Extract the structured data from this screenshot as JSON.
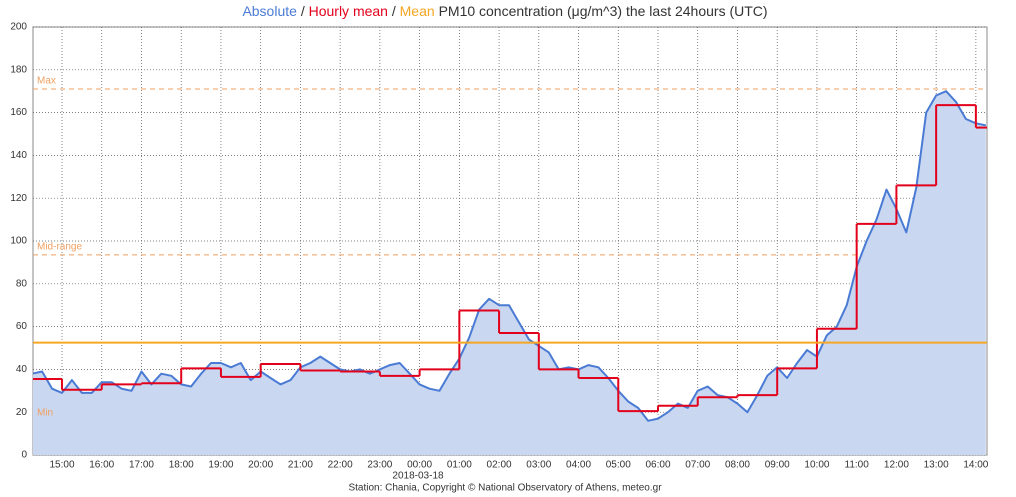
{
  "chart_data": {
    "type": "line",
    "title": "PM10 concentration (μg/m^3) the last 24hours (UTC)",
    "title_separator": "/",
    "x_date_label": "2018-03-18",
    "source": "Station: Chania, Copyright © National Observatory of Athens, meteo.gr",
    "xlim": [
      -9.73,
      14.28
    ],
    "xticks": [
      {
        "value": -9,
        "label": "15:00"
      },
      {
        "value": -8,
        "label": "16:00"
      },
      {
        "value": -7,
        "label": "17:00"
      },
      {
        "value": -6,
        "label": "18:00"
      },
      {
        "value": -5,
        "label": "19:00"
      },
      {
        "value": -4,
        "label": "20:00"
      },
      {
        "value": -3,
        "label": "21:00"
      },
      {
        "value": -2,
        "label": "22:00"
      },
      {
        "value": -1,
        "label": "23:00"
      },
      {
        "value": 0,
        "label": "00:00"
      },
      {
        "value": 1,
        "label": "01:00"
      },
      {
        "value": 2,
        "label": "02:00"
      },
      {
        "value": 3,
        "label": "03:00"
      },
      {
        "value": 4,
        "label": "04:00"
      },
      {
        "value": 5,
        "label": "05:00"
      },
      {
        "value": 6,
        "label": "06:00"
      },
      {
        "value": 7,
        "label": "07:00"
      },
      {
        "value": 8,
        "label": "08:00"
      },
      {
        "value": 9,
        "label": "09:00"
      },
      {
        "value": 10,
        "label": "10:00"
      },
      {
        "value": 11,
        "label": "11:00"
      },
      {
        "value": 12,
        "label": "12:00"
      },
      {
        "value": 13,
        "label": "13:00"
      },
      {
        "value": 14,
        "label": "14:00"
      }
    ],
    "ylim": [
      0,
      200
    ],
    "yticks": [
      0,
      20,
      40,
      60,
      80,
      100,
      120,
      140,
      160,
      180,
      200
    ],
    "grid": true,
    "series": [
      {
        "name": "Absolute",
        "color": "#4a7bd4",
        "fill": "#c9d7f1",
        "style": "area",
        "x": [
          -9.75,
          -9.5,
          -9.25,
          -9,
          -8.75,
          -8.5,
          -8.25,
          -8,
          -7.75,
          -7.5,
          -7.25,
          -7,
          -6.75,
          -6.5,
          -6.25,
          -6,
          -5.75,
          -5.5,
          -5.25,
          -5,
          -4.75,
          -4.5,
          -4.25,
          -4,
          -3.75,
          -3.5,
          -3.25,
          -3,
          -2.75,
          -2.5,
          -2.25,
          -2,
          -1.75,
          -1.5,
          -1.25,
          -1,
          -0.75,
          -0.5,
          -0.25,
          0,
          0.25,
          0.5,
          0.75,
          1,
          1.25,
          1.5,
          1.75,
          2,
          2.25,
          2.5,
          2.75,
          3,
          3.25,
          3.5,
          3.75,
          4,
          4.25,
          4.5,
          4.75,
          5,
          5.25,
          5.5,
          5.75,
          6,
          6.25,
          6.5,
          6.75,
          7,
          7.25,
          7.5,
          7.75,
          8,
          8.25,
          8.5,
          8.75,
          9,
          9.25,
          9.5,
          9.75,
          10,
          10.25,
          10.5,
          10.75,
          11,
          11.25,
          11.5,
          11.75,
          12,
          12.25,
          12.5,
          12.75,
          13,
          13.25,
          13.5,
          13.75,
          14,
          14.25
        ],
        "values": [
          38,
          39,
          31,
          29,
          35,
          29,
          29,
          34,
          34,
          31,
          30,
          39,
          33,
          38,
          37,
          33,
          32,
          38,
          43,
          43,
          41,
          43,
          35,
          39,
          36,
          33,
          35,
          41,
          43,
          46,
          43,
          40,
          39,
          40,
          38,
          40,
          42,
          43,
          38,
          33,
          31,
          30,
          38,
          45,
          55,
          68,
          73,
          70,
          70,
          62,
          54,
          51,
          48,
          40,
          41,
          40,
          42,
          41,
          36,
          30,
          25,
          22,
          16,
          17,
          20,
          24,
          22,
          30,
          32,
          28,
          27,
          24,
          20,
          28,
          37,
          41,
          36,
          43,
          49,
          46,
          56,
          60,
          70,
          88,
          100,
          110,
          124,
          115,
          104,
          125,
          160,
          168,
          170,
          165,
          157,
          155,
          154
        ]
      },
      {
        "name": "Hourly mean",
        "color": "#e3001b",
        "style": "step",
        "x": [
          -10,
          -9,
          -8,
          -7,
          -6,
          -5,
          -4,
          -3,
          -2,
          -1,
          0,
          1,
          2,
          3,
          4,
          5,
          6,
          7,
          8,
          9,
          10,
          11,
          12,
          13,
          14
        ],
        "values": [
          35.5,
          30.5,
          33,
          33.5,
          40.5,
          36.5,
          42.5,
          39.5,
          39,
          37,
          40,
          67.5,
          57,
          40,
          36,
          20.5,
          23,
          27,
          28,
          40.5,
          59,
          108,
          126,
          163.5,
          153
        ]
      }
    ],
    "mean": {
      "name": "Mean",
      "value": 52.5,
      "color": "#f5a623"
    },
    "ref_lines": [
      {
        "name": "Max",
        "value": 171,
        "color": "#f0a060"
      },
      {
        "name": "Mid-range",
        "value": 93.5,
        "color": "#f0a060"
      },
      {
        "name": "Min",
        "value": 16,
        "color": "#f0a060"
      }
    ]
  }
}
